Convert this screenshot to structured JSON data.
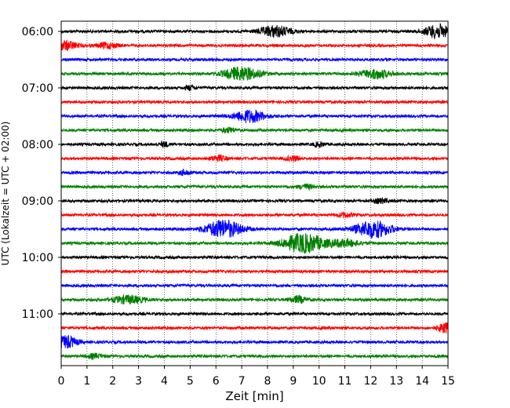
{
  "chart_data": {
    "type": "line",
    "title": "",
    "xlabel": "Zeit  [min]",
    "ylabel": "UTC (Lokalzeit = UTC + 02:00)",
    "xlim": [
      0,
      15
    ],
    "x_ticks": [
      "0",
      "1",
      "2",
      "3",
      "4",
      "5",
      "6",
      "7",
      "8",
      "9",
      "10",
      "11",
      "12",
      "13",
      "14",
      "15"
    ],
    "y_ticks": [
      "06:00",
      "07:00",
      "08:00",
      "09:00",
      "10:00",
      "11:00"
    ],
    "grid": "vertical-dotted",
    "legend": "none",
    "trace_start": "06:00",
    "trace_interval_min": 15,
    "series_colors": [
      "#000000",
      "#ff0000",
      "#0000ff",
      "#008000"
    ],
    "traces": [
      {
        "start": "06:00",
        "color": "#000000",
        "events": [
          {
            "t": 8.3,
            "amp": 1.0,
            "w": 0.6
          },
          {
            "t": 14.6,
            "amp": 1.2,
            "w": 0.5
          }
        ]
      },
      {
        "start": "06:15",
        "color": "#ff0000",
        "events": [
          {
            "t": 0.2,
            "amp": 0.8,
            "w": 0.4
          },
          {
            "t": 1.8,
            "amp": 0.5,
            "w": 0.4
          }
        ]
      },
      {
        "start": "06:30",
        "color": "#0000ff",
        "events": []
      },
      {
        "start": "06:45",
        "color": "#008000",
        "events": [
          {
            "t": 7.0,
            "amp": 1.2,
            "w": 0.7
          },
          {
            "t": 12.2,
            "amp": 0.8,
            "w": 0.6
          }
        ]
      },
      {
        "start": "07:00",
        "color": "#000000",
        "events": [
          {
            "t": 5.0,
            "amp": 0.4,
            "w": 0.2
          }
        ]
      },
      {
        "start": "07:15",
        "color": "#ff0000",
        "events": []
      },
      {
        "start": "07:30",
        "color": "#0000ff",
        "events": [
          {
            "t": 7.3,
            "amp": 1.1,
            "w": 0.6
          }
        ]
      },
      {
        "start": "07:45",
        "color": "#008000",
        "events": [
          {
            "t": 6.5,
            "amp": 0.4,
            "w": 0.3
          }
        ]
      },
      {
        "start": "08:00",
        "color": "#000000",
        "events": [
          {
            "t": 4.0,
            "amp": 0.4,
            "w": 0.2
          },
          {
            "t": 10.0,
            "amp": 0.4,
            "w": 0.2
          }
        ]
      },
      {
        "start": "08:15",
        "color": "#ff0000",
        "events": [
          {
            "t": 6.1,
            "amp": 0.5,
            "w": 0.3
          },
          {
            "t": 9.0,
            "amp": 0.4,
            "w": 0.3
          }
        ]
      },
      {
        "start": "08:30",
        "color": "#0000ff",
        "events": [
          {
            "t": 4.8,
            "amp": 0.5,
            "w": 0.2
          }
        ]
      },
      {
        "start": "08:45",
        "color": "#008000",
        "events": [
          {
            "t": 9.5,
            "amp": 0.4,
            "w": 0.3
          }
        ]
      },
      {
        "start": "09:00",
        "color": "#000000",
        "events": [
          {
            "t": 12.4,
            "amp": 0.4,
            "w": 0.3
          }
        ]
      },
      {
        "start": "09:15",
        "color": "#ff0000",
        "events": [
          {
            "t": 11.0,
            "amp": 0.4,
            "w": 0.3
          }
        ]
      },
      {
        "start": "09:30",
        "color": "#0000ff",
        "events": [
          {
            "t": 6.3,
            "amp": 1.6,
            "w": 0.7
          },
          {
            "t": 12.1,
            "amp": 1.5,
            "w": 0.7
          }
        ]
      },
      {
        "start": "09:45",
        "color": "#008000",
        "events": [
          {
            "t": 9.4,
            "amp": 1.7,
            "w": 0.8
          },
          {
            "t": 11.0,
            "amp": 0.6,
            "w": 0.6
          }
        ]
      },
      {
        "start": "10:00",
        "color": "#000000",
        "events": []
      },
      {
        "start": "10:15",
        "color": "#ff0000",
        "events": []
      },
      {
        "start": "10:30",
        "color": "#0000ff",
        "events": []
      },
      {
        "start": "10:45",
        "color": "#008000",
        "events": [
          {
            "t": 2.6,
            "amp": 0.7,
            "w": 0.6
          },
          {
            "t": 9.2,
            "amp": 0.6,
            "w": 0.3
          }
        ]
      },
      {
        "start": "11:00",
        "color": "#000000",
        "events": []
      },
      {
        "start": "11:15",
        "color": "#ff0000",
        "events": [
          {
            "t": 14.9,
            "amp": 0.9,
            "w": 0.3
          }
        ]
      },
      {
        "start": "11:30",
        "color": "#0000ff",
        "events": [
          {
            "t": 0.2,
            "amp": 1.1,
            "w": 0.4
          }
        ]
      },
      {
        "start": "11:45",
        "color": "#008000",
        "events": [
          {
            "t": 1.3,
            "amp": 0.4,
            "w": 0.3
          }
        ]
      }
    ]
  }
}
